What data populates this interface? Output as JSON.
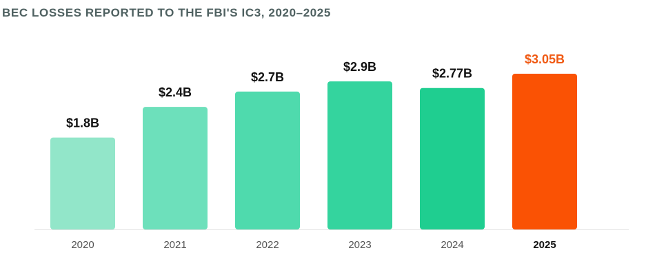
{
  "chart_data": {
    "type": "bar",
    "title": "BEC LOSSES REPORTED TO THE FBI'S IC3, 2020–2025",
    "xlabel": "",
    "ylabel": "",
    "categories": [
      "2020",
      "2021",
      "2022",
      "2023",
      "2024",
      "2025"
    ],
    "values": [
      1.8,
      2.4,
      2.7,
      2.9,
      2.77,
      3.05
    ],
    "data_labels": [
      "$1.8B",
      "$2.4B",
      "$2.7B",
      "$2.9B",
      "$2.77B",
      "$3.05B"
    ],
    "unit": "USD billions",
    "ylim": [
      0,
      3.05
    ],
    "grid": false,
    "legend": "none",
    "highlight_index": 5,
    "colors": [
      "#92e6c9",
      "#6de0bb",
      "#4fdaad",
      "#34d49e",
      "#1fce90",
      "#fa5204"
    ],
    "label_color": "#111111",
    "highlight_label_color": "#f05a14",
    "title_color": "#4f6161"
  }
}
